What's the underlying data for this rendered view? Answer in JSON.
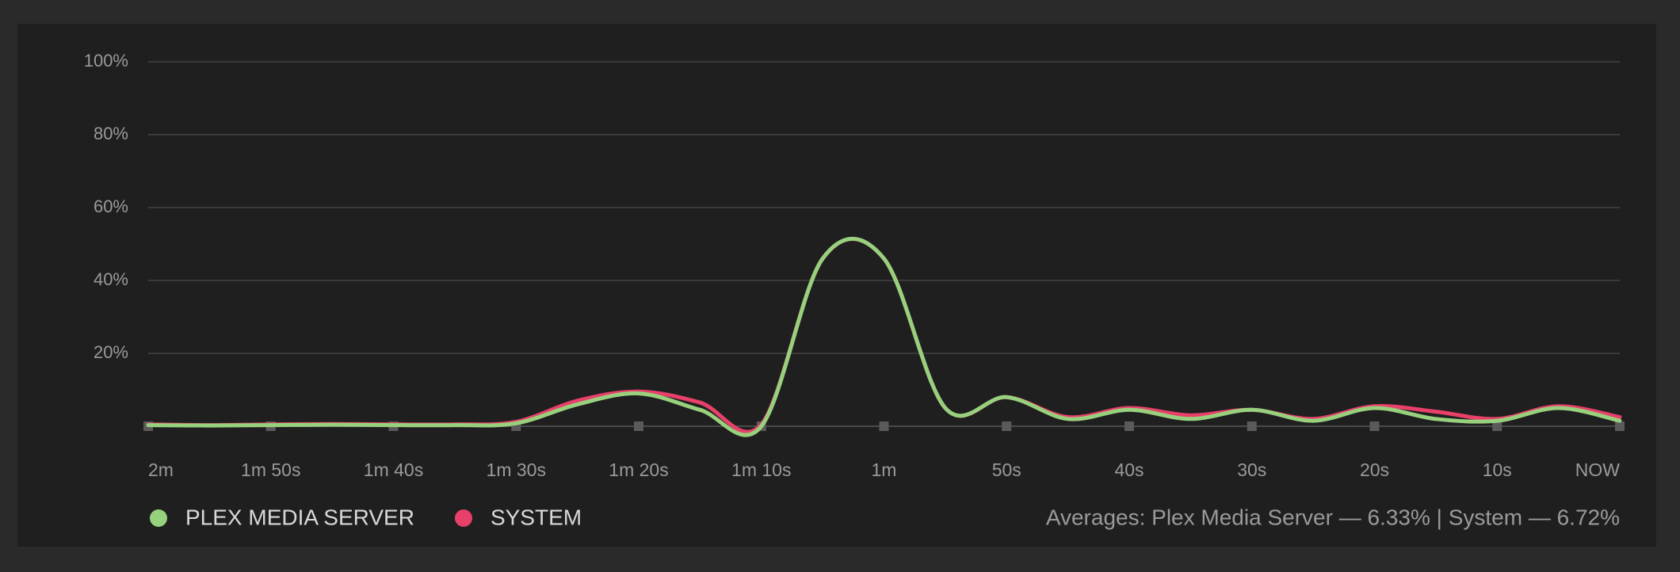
{
  "chart_data": {
    "type": "line",
    "x": [
      -120,
      -115,
      -110,
      -105,
      -100,
      -95,
      -90,
      -85,
      -80,
      -75,
      -70,
      -65,
      -60,
      -55,
      -50,
      -45,
      -40,
      -35,
      -30,
      -25,
      -20,
      -15,
      -10,
      -5,
      0
    ],
    "series": [
      {
        "name": "SYSTEM",
        "color": "#e8406a",
        "values": [
          0.5,
          0.3,
          0.5,
          0.6,
          0.5,
          0.5,
          1.2,
          7,
          9.5,
          6.5,
          0.5,
          46,
          46,
          5,
          8,
          2.5,
          5,
          3,
          4.5,
          2,
          5.5,
          4,
          2,
          5.5,
          2.5
        ]
      },
      {
        "name": "PLEX MEDIA SERVER",
        "color": "#98d17e",
        "values": [
          0.3,
          0.2,
          0.3,
          0.4,
          0.3,
          0.3,
          0.8,
          6,
          9,
          4.5,
          0,
          46,
          46,
          5,
          8,
          2,
          4.5,
          2,
          4.5,
          1.5,
          5,
          2,
          1.5,
          5,
          1.5
        ]
      }
    ],
    "xlim": [
      -120,
      0
    ],
    "xticks": [
      {
        "value": -120,
        "label": "2m"
      },
      {
        "value": -110,
        "label": "1m 50s"
      },
      {
        "value": -100,
        "label": "1m 40s"
      },
      {
        "value": -90,
        "label": "1m 30s"
      },
      {
        "value": -80,
        "label": "1m 20s"
      },
      {
        "value": -70,
        "label": "1m 10s"
      },
      {
        "value": -60,
        "label": "1m"
      },
      {
        "value": -50,
        "label": "50s"
      },
      {
        "value": -40,
        "label": "40s"
      },
      {
        "value": -30,
        "label": "30s"
      },
      {
        "value": -20,
        "label": "20s"
      },
      {
        "value": -10,
        "label": "10s"
      },
      {
        "value": 0,
        "label": "NOW"
      }
    ],
    "ylim": [
      0,
      100
    ],
    "yticks": [
      {
        "value": 20,
        "label": "20%"
      },
      {
        "value": 40,
        "label": "40%"
      },
      {
        "value": 60,
        "label": "60%"
      },
      {
        "value": 80,
        "label": "80%"
      },
      {
        "value": 100,
        "label": "100%"
      }
    ],
    "grid": true,
    "averages": "Averages: Plex Media Server — 6.33% | System — 6.72%"
  }
}
